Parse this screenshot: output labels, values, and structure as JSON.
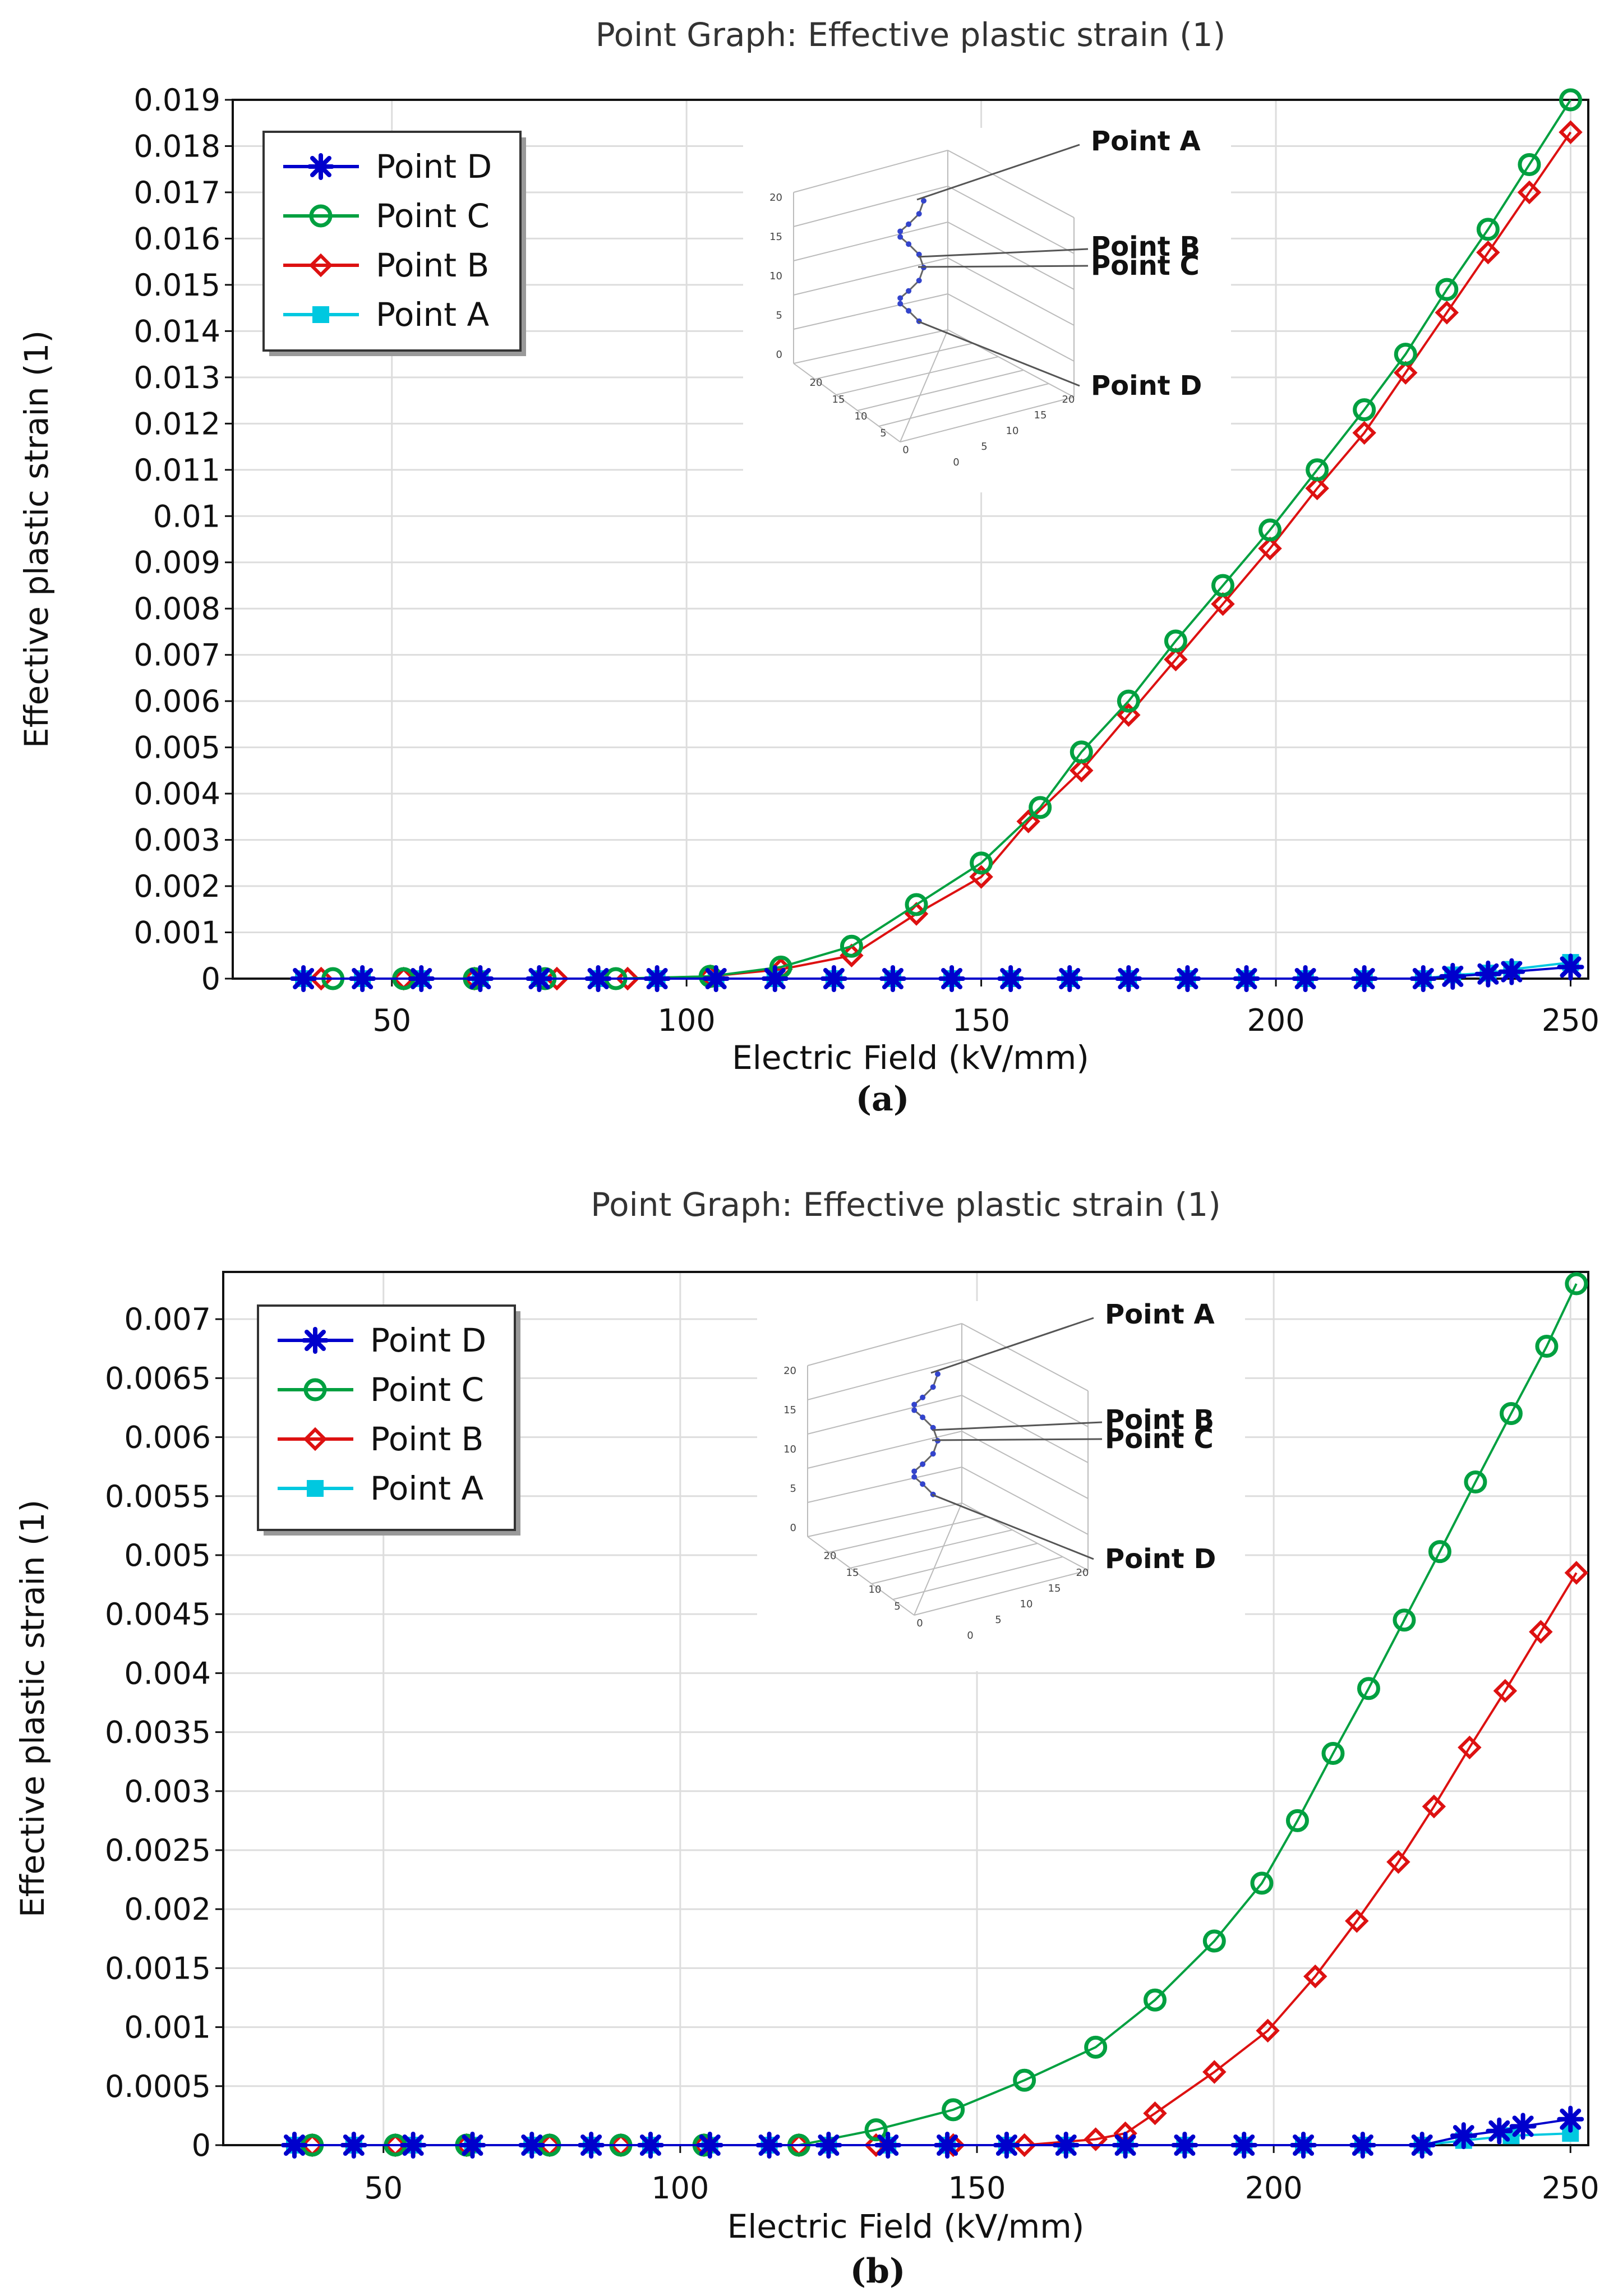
{
  "chart_data": [
    {
      "id": "a",
      "type": "line",
      "title": "Point Graph: Effective plastic strain (1)",
      "xlabel": "Electric Field (kV/mm)",
      "ylabel": "Effective plastic strain (1)",
      "caption": "(a)",
      "xlim": [
        23,
        253
      ],
      "ylim": [
        0,
        0.019
      ],
      "xticks": [
        50,
        100,
        150,
        200,
        250
      ],
      "yticks": [
        0,
        0.001,
        0.002,
        0.003,
        0.004,
        0.005,
        0.006,
        0.007,
        0.008,
        0.009,
        0.01,
        0.011,
        0.012,
        0.013,
        0.014,
        0.015,
        0.016,
        0.017,
        0.018,
        0.019
      ],
      "ytick_labels": [
        "0",
        "0.001",
        "0.002",
        "0.003",
        "0.004",
        "0.005",
        "0.006",
        "0.007",
        "0.008",
        "0.009",
        "0.01",
        "0.011",
        "0.012",
        "0.013",
        "0.014",
        "0.015",
        "0.016",
        "0.017",
        "0.018",
        "0.019"
      ],
      "grid": true,
      "legend_position": "top-left",
      "series": [
        {
          "name": "Point D",
          "color": "#0000cc",
          "marker": "asterisk",
          "x": [
            35,
            45,
            55,
            65,
            75,
            85,
            95,
            105,
            115,
            125,
            135,
            145,
            155,
            165,
            175,
            185,
            195,
            205,
            215,
            225,
            230,
            236,
            240,
            250
          ],
          "y": [
            0,
            0,
            0,
            0,
            0,
            0,
            0,
            0,
            0,
            0,
            0,
            0,
            0,
            0,
            0,
            0,
            0,
            0,
            0,
            0,
            5e-05,
            0.0001,
            0.00015,
            0.00025
          ]
        },
        {
          "name": "Point C",
          "color": "#00a040",
          "marker": "circle",
          "x": [
            40,
            52,
            64,
            76,
            88,
            104,
            116,
            128,
            139,
            150,
            160,
            167,
            175,
            183,
            191,
            199,
            207,
            215,
            222,
            229,
            236,
            243,
            250
          ],
          "y": [
            0,
            0,
            0,
            0,
            0,
            5e-05,
            0.00025,
            0.0007,
            0.0016,
            0.0025,
            0.0037,
            0.0049,
            0.006,
            0.0073,
            0.0085,
            0.0097,
            0.011,
            0.0123,
            0.0135,
            0.0149,
            0.0162,
            0.0176,
            0.019
          ]
        },
        {
          "name": "Point B",
          "color": "#dd1111",
          "marker": "diamond",
          "x": [
            38,
            52,
            64,
            78,
            90,
            104,
            116,
            128,
            139,
            150,
            158,
            167,
            175,
            183,
            191,
            199,
            207,
            215,
            222,
            229,
            236,
            243,
            250
          ],
          "y": [
            0,
            0,
            0,
            0,
            0,
            5e-05,
            0.0002,
            0.0005,
            0.0014,
            0.0022,
            0.0034,
            0.0045,
            0.0057,
            0.0069,
            0.0081,
            0.0093,
            0.0106,
            0.0118,
            0.0131,
            0.0144,
            0.0157,
            0.017,
            0.0183
          ]
        },
        {
          "name": "Point A",
          "color": "#00c8e0",
          "marker": "square",
          "x": [
            35,
            45,
            55,
            65,
            75,
            85,
            95,
            105,
            115,
            125,
            135,
            145,
            155,
            165,
            175,
            185,
            195,
            205,
            215,
            225,
            230,
            236,
            240,
            250
          ],
          "y": [
            0,
            0,
            0,
            0,
            0,
            0,
            0,
            0,
            0,
            0,
            0,
            0,
            0,
            0,
            0,
            0,
            0,
            0,
            0,
            0,
            8e-05,
            0.00012,
            0.0002,
            0.00035
          ]
        }
      ],
      "inset_labels": [
        "Point A",
        "Point B",
        "Point C",
        "Point D"
      ],
      "inset_ticks": [
        "20",
        "15",
        "10",
        "5",
        "0"
      ]
    },
    {
      "id": "b",
      "type": "line",
      "title": "Point Graph: Effective plastic strain (1)",
      "xlabel": "Electric Field (kV/mm)",
      "ylabel": "Effective plastic strain (1)",
      "caption": "(b)",
      "xlim": [
        23,
        253
      ],
      "ylim": [
        0,
        0.0074
      ],
      "xticks": [
        50,
        100,
        150,
        200,
        250
      ],
      "yticks": [
        0,
        0.0005,
        0.001,
        0.0015,
        0.002,
        0.0025,
        0.003,
        0.0035,
        0.004,
        0.0045,
        0.005,
        0.0055,
        0.006,
        0.0065,
        0.007
      ],
      "ytick_labels": [
        "0",
        "0.0005",
        "0.001",
        "0.0015",
        "0.002",
        "0.0025",
        "0.003",
        "0.0035",
        "0.004",
        "0.0045",
        "0.005",
        "0.0055",
        "0.006",
        "0.0065",
        "0.007"
      ],
      "grid": true,
      "legend_position": "top-left",
      "series": [
        {
          "name": "Point D",
          "color": "#0000cc",
          "marker": "asterisk",
          "x": [
            35,
            45,
            55,
            65,
            75,
            85,
            95,
            105,
            115,
            125,
            135,
            145,
            155,
            165,
            175,
            185,
            195,
            205,
            215,
            225,
            232,
            238,
            242,
            250
          ],
          "y": [
            0,
            0,
            0,
            0,
            0,
            0,
            0,
            0,
            0,
            0,
            0,
            0,
            0,
            0,
            0,
            0,
            0,
            0,
            0,
            0,
            8e-05,
            0.00012,
            0.00016,
            0.00022
          ]
        },
        {
          "name": "Point C",
          "color": "#00a040",
          "marker": "circle",
          "x": [
            38,
            52,
            64,
            78,
            90,
            104,
            120,
            133,
            146,
            158,
            170,
            180,
            190,
            198,
            204,
            210,
            216,
            222,
            228,
            234,
            240,
            246,
            251
          ],
          "y": [
            0,
            0,
            0,
            0,
            0,
            0,
            0,
            0.00013,
            0.0003,
            0.00055,
            0.00083,
            0.00123,
            0.00173,
            0.00222,
            0.00275,
            0.00332,
            0.00387,
            0.00445,
            0.00503,
            0.00562,
            0.0062,
            0.00677,
            0.0073
          ]
        },
        {
          "name": "Point B",
          "color": "#dd1111",
          "marker": "diamond",
          "x": [
            38,
            52,
            64,
            78,
            90,
            104,
            120,
            133,
            146,
            158,
            170,
            175,
            180,
            190,
            199,
            207,
            214,
            221,
            227,
            233,
            239,
            245,
            251
          ],
          "y": [
            0,
            0,
            0,
            0,
            0,
            0,
            0,
            0,
            0,
            0,
            5e-05,
            0.0001,
            0.00027,
            0.00062,
            0.00097,
            0.00143,
            0.0019,
            0.0024,
            0.00287,
            0.00337,
            0.00385,
            0.00435,
            0.00485
          ]
        },
        {
          "name": "Point A",
          "color": "#00c8e0",
          "marker": "square",
          "x": [
            35,
            45,
            55,
            65,
            75,
            85,
            95,
            105,
            115,
            125,
            135,
            145,
            155,
            165,
            175,
            185,
            195,
            205,
            215,
            225,
            232,
            240,
            250
          ],
          "y": [
            0,
            0,
            0,
            0,
            0,
            0,
            0,
            0,
            0,
            0,
            0,
            0,
            0,
            0,
            0,
            0,
            0,
            0,
            0,
            0,
            4e-05,
            8e-05,
            0.0001
          ]
        }
      ],
      "inset_labels": [
        "Point A",
        "Point B",
        "Point C",
        "Point D"
      ],
      "inset_ticks": [
        "20",
        "15",
        "10",
        "5",
        "0"
      ]
    }
  ]
}
